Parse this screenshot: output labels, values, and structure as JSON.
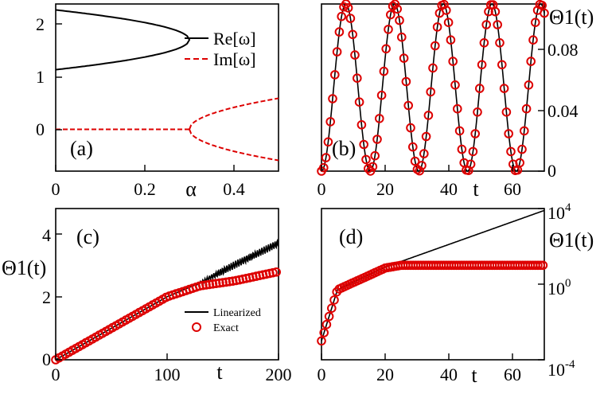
{
  "chart_data": [
    {
      "id": "a",
      "type": "line",
      "panel_label": "(a)",
      "xlabel": "α",
      "ylabel": "",
      "xlim": [
        0,
        0.5
      ],
      "ylim": [
        -0.7,
        2.1
      ],
      "xticks": [
        "0",
        "0.2",
        "0.4"
      ],
      "yticks": [
        "0",
        "1",
        "2"
      ],
      "legend": [
        "Re[ω]",
        "Im[ω]"
      ],
      "legend_position": "top-right",
      "colors": {
        "re": "#000000",
        "im": "#dd0000"
      },
      "bifurcation_alpha": 0.3,
      "re_upper_at_0": 2.0,
      "re_lower_at_0": 1.2,
      "re_merge_value": 1.5,
      "im_branch_at_0.5": 0.52
    },
    {
      "id": "b",
      "type": "scatter",
      "panel_label": "(b)",
      "xlabel": "t",
      "ylabel": "Θ1(t)",
      "xlim": [
        0,
        70
      ],
      "ylim": [
        0,
        0.095
      ],
      "xticks": [
        "0",
        "20",
        "40",
        "60"
      ],
      "yticks": [
        "0",
        "0.04",
        "0.08"
      ],
      "axis_side_y": "right",
      "period": 15.3,
      "amplitude": 0.095
    },
    {
      "id": "c",
      "type": "line",
      "panel_label": "(c)",
      "xlabel": "t",
      "ylabel": "Θ1(t)",
      "xlim": [
        0,
        200
      ],
      "ylim": [
        0,
        4.8
      ],
      "xticks": [
        "0",
        "100",
        "200"
      ],
      "yticks": [
        "0",
        "2",
        "4"
      ],
      "legend": [
        "Linearized",
        "Exact"
      ],
      "legend_position": "bottom-right",
      "linearized": {
        "x": [
          0,
          50,
          100,
          130,
          160,
          200
        ],
        "y": [
          0,
          1.0,
          2.0,
          2.45,
          3.0,
          3.7
        ]
      },
      "exact": {
        "x": [
          0,
          50,
          100,
          130,
          160,
          200
        ],
        "y": [
          0,
          1.0,
          2.0,
          2.35,
          2.5,
          2.8
        ]
      }
    },
    {
      "id": "d",
      "type": "line",
      "panel_label": "(d)",
      "xlabel": "t",
      "ylabel": "Θ1(t)",
      "xlim": [
        0,
        70
      ],
      "ylim_log10": [
        -4,
        4
      ],
      "yscale": "log",
      "xticks": [
        "0",
        "20",
        "40",
        "60"
      ],
      "yticks": [
        {
          "base": "10",
          "exp": "4"
        },
        {
          "base": "10",
          "exp": "0"
        },
        {
          "base": "10",
          "exp": "-4"
        }
      ],
      "axis_side_y": "right",
      "linearized_log10": {
        "x": [
          0,
          5,
          20,
          25,
          70
        ],
        "y": [
          -3.0,
          -0.3,
          0.9,
          1.2,
          3.9
        ]
      },
      "exact_log10": {
        "x": [
          0,
          5,
          20,
          25,
          70
        ],
        "y": [
          -3.0,
          -0.3,
          0.85,
          1.0,
          1.0
        ]
      }
    }
  ]
}
